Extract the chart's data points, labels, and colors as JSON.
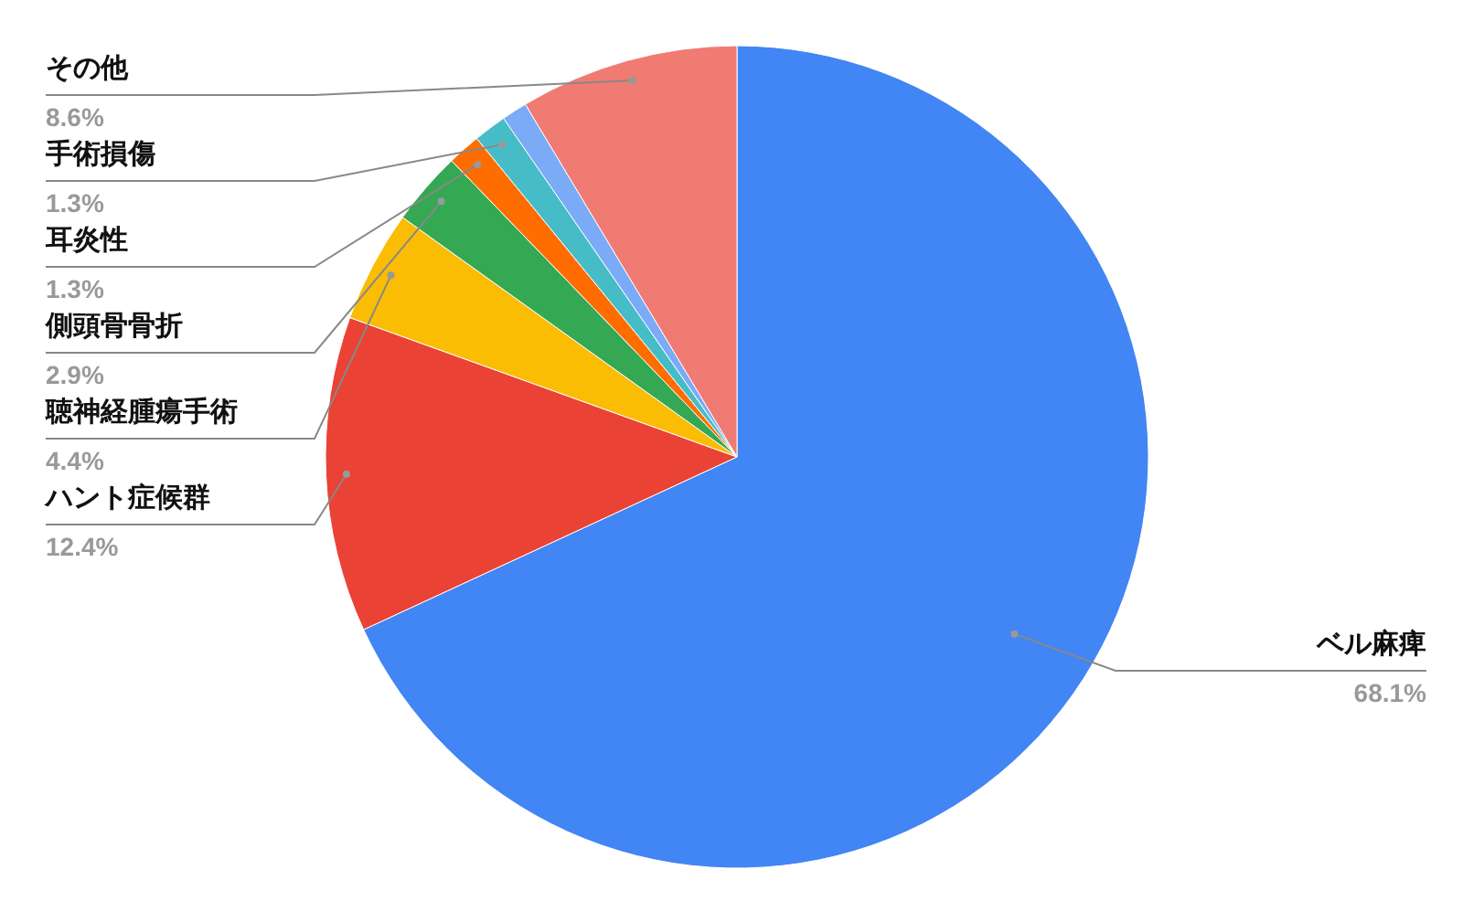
{
  "chart_data": {
    "type": "pie",
    "categories": [
      "ベル麻痺",
      "ハント症候群",
      "聴神経腫瘍手術",
      "側頭骨骨折",
      "耳炎性",
      "手術損傷",
      null,
      "その他"
    ],
    "values": [
      68.1,
      12.4,
      4.4,
      2.9,
      1.3,
      1.3,
      1.0,
      8.6
    ],
    "colors": [
      "#4285f4",
      "#ea4335",
      "#fbbc04",
      "#34a853",
      "#ff6d01",
      "#46bdc6",
      "#7baaf7",
      "#f07b72"
    ],
    "value_labels": [
      "68.1%",
      "12.4%",
      "4.4%",
      "2.9%",
      "1.3%",
      "1.3%",
      null,
      "8.6%"
    ]
  }
}
